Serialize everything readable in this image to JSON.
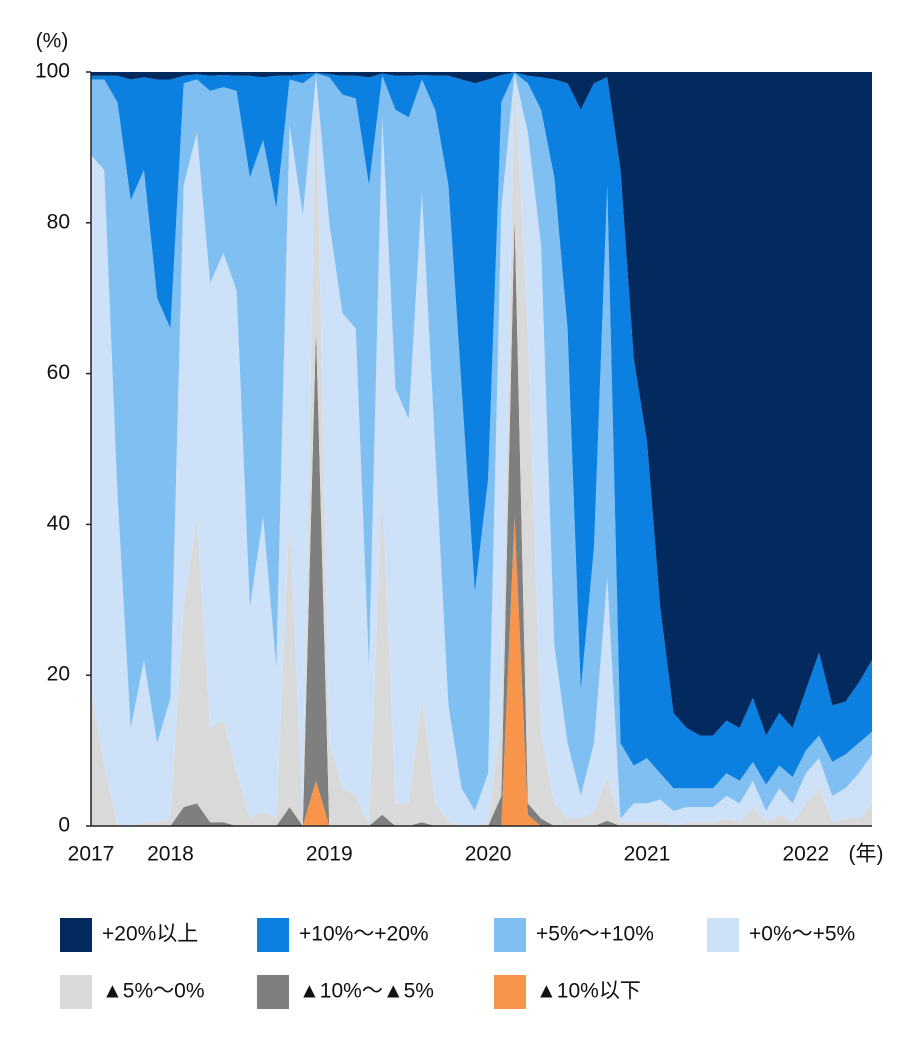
{
  "chart_data": {
    "type": "stacked-area",
    "y_unit": "(%)",
    "x_unit": "(年)",
    "categories": [
      "2017",
      null,
      null,
      null,
      null,
      null,
      "2018",
      null,
      null,
      null,
      null,
      null,
      null,
      null,
      null,
      null,
      null,
      null,
      "2019",
      null,
      null,
      null,
      null,
      null,
      null,
      null,
      null,
      null,
      null,
      null,
      "2020",
      null,
      null,
      null,
      null,
      null,
      null,
      null,
      null,
      null,
      null,
      null,
      "2021",
      null,
      null,
      null,
      null,
      null,
      null,
      null,
      null,
      null,
      null,
      null,
      "2022",
      null,
      null,
      null,
      null,
      null
    ],
    "ylim": [
      0,
      100
    ],
    "yticks": [
      0,
      20,
      40,
      60,
      80,
      100
    ],
    "series": [
      {
        "name": "▲10%以下",
        "color": "#f8954a",
        "values": [
          0,
          0,
          0,
          0,
          0,
          0,
          0,
          0,
          0,
          0,
          0,
          0,
          0,
          0,
          0,
          0,
          0,
          6,
          0,
          0,
          0,
          0,
          0,
          0,
          0,
          0,
          0,
          0,
          0,
          0,
          0,
          0,
          41,
          1.5,
          0,
          0,
          0,
          0,
          0,
          0,
          0,
          0,
          0,
          0,
          0,
          0,
          0,
          0,
          0,
          0,
          0,
          0,
          0,
          0,
          0,
          0,
          0,
          0,
          0,
          0
        ]
      },
      {
        "name": "▲10%～▲5%",
        "color": "#7f7f7f",
        "values": [
          0,
          0,
          0,
          0,
          0,
          0,
          0,
          2.5,
          3,
          0.5,
          0.5,
          0,
          0,
          0,
          0,
          2.5,
          0,
          60,
          0,
          0,
          0,
          0,
          1.5,
          0,
          0,
          0.5,
          0,
          0,
          0,
          0,
          0,
          4,
          40,
          1.5,
          1,
          0,
          0,
          0,
          0,
          0.7,
          0,
          0,
          0,
          0,
          0,
          0,
          0,
          0,
          0,
          0,
          0,
          0,
          0,
          0,
          0,
          0,
          0,
          0,
          0,
          0
        ]
      },
      {
        "name": "▲5%～0%",
        "color": "#d9d9d9",
        "values": [
          18,
          8,
          0,
          0,
          0.5,
          0.5,
          1,
          26.5,
          38,
          12.5,
          13.5,
          7,
          1,
          2,
          1,
          38.5,
          1,
          33,
          11,
          5,
          4,
          0,
          43.5,
          3,
          3,
          16.5,
          3,
          0.5,
          0,
          0,
          0.5,
          10,
          18.5,
          62,
          11,
          3,
          1,
          1,
          2,
          5.8,
          0.5,
          0.5,
          0.5,
          0.5,
          0,
          0.5,
          0.5,
          0.5,
          1,
          0.5,
          2.5,
          0.5,
          1.5,
          0.5,
          3,
          5,
          0.5,
          1,
          1,
          3
        ]
      },
      {
        "name": "+0%～+5%",
        "color": "#cde1f9",
        "values": [
          71,
          79,
          44,
          13,
          21.5,
          10.5,
          16,
          56,
          51,
          59,
          62,
          64,
          28,
          39,
          20,
          52,
          80,
          0.5,
          69,
          63,
          62,
          21,
          49,
          55,
          51,
          67,
          47,
          15.5,
          5,
          2,
          6.5,
          68,
          0.3,
          27,
          65,
          21,
          10,
          3,
          9,
          26.5,
          0.5,
          2.5,
          2.5,
          3,
          2,
          2,
          2,
          2,
          3,
          2.5,
          3.5,
          1.5,
          3.5,
          2.5,
          4,
          4,
          3.5,
          4,
          6,
          6.5
        ]
      },
      {
        "name": "+5%～+10%",
        "color": "#80bff1",
        "values": [
          10,
          12,
          52,
          70,
          65,
          59,
          49,
          13.5,
          7,
          25.5,
          22,
          26.5,
          57,
          50,
          61,
          6,
          17.5,
          0.3,
          19.3,
          29,
          30.5,
          64,
          5.5,
          37,
          40,
          15,
          45,
          69,
          53,
          29,
          39,
          14,
          0.1,
          6.5,
          18,
          62,
          55,
          14,
          26,
          52,
          10,
          5,
          6,
          3.5,
          3,
          2.5,
          2.5,
          2.5,
          3,
          3,
          2.5,
          3.5,
          3,
          3.5,
          3,
          3,
          4.5,
          4.5,
          4,
          3
        ]
      },
      {
        "name": "+10%～+20%",
        "color": "#0c80e0",
        "values": [
          0.5,
          0.5,
          3.5,
          16,
          12.3,
          29,
          33,
          1,
          0.7,
          2,
          1.6,
          2,
          13.5,
          8.3,
          17.5,
          0.5,
          1.2,
          0.1,
          0.4,
          2.5,
          3,
          14.3,
          0.3,
          4.5,
          5.5,
          0.6,
          4.5,
          14.5,
          41,
          67.5,
          53,
          3.6,
          0.05,
          1,
          4.3,
          13,
          32.5,
          77,
          61.5,
          14.3,
          76,
          54,
          42,
          22,
          10,
          8,
          7,
          7,
          7,
          7,
          8.5,
          6.5,
          7,
          6.5,
          8,
          11,
          7.5,
          7,
          8,
          9.5
        ]
      },
      {
        "name": "+20%以上",
        "color": "#022a5f",
        "values": [
          0.5,
          0.5,
          0.5,
          1,
          0.7,
          1,
          1,
          0.5,
          0.3,
          0.5,
          0.4,
          0.5,
          0.5,
          0.7,
          0.5,
          0.5,
          0.3,
          0.1,
          0.3,
          0.5,
          0.5,
          0.7,
          0.2,
          0.5,
          0.5,
          0.4,
          0.5,
          0.5,
          1,
          1.5,
          1,
          0.4,
          0.05,
          0.5,
          0.7,
          1,
          1.5,
          5,
          1.5,
          0.7,
          13,
          38,
          49,
          71,
          85,
          87,
          88,
          88,
          86,
          87,
          83,
          88,
          85,
          87,
          82,
          77,
          84,
          83.5,
          81,
          78
        ]
      }
    ]
  }
}
